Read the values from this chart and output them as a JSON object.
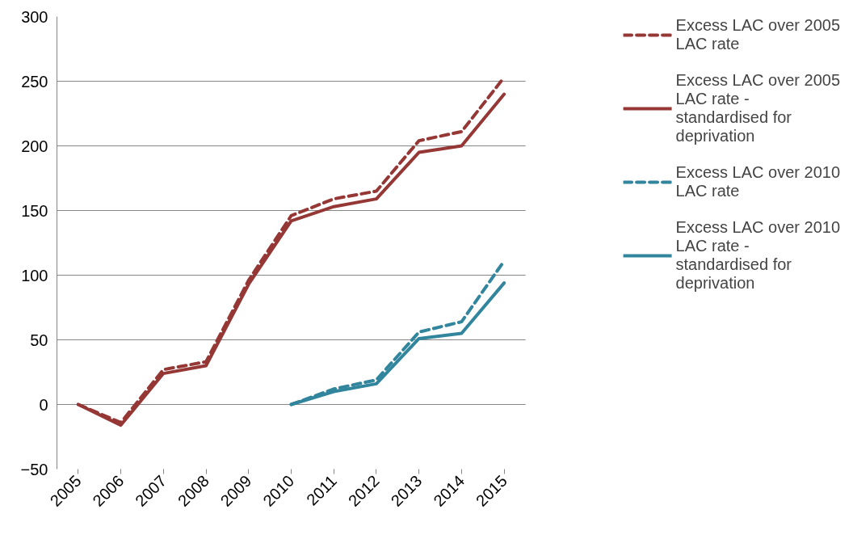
{
  "chart_data": {
    "type": "line",
    "categories": [
      "2005",
      "2006",
      "2007",
      "2008",
      "2009",
      "2010",
      "2011",
      "2012",
      "2013",
      "2014",
      "2015"
    ],
    "series": [
      {
        "name": "Excess LAC over 2005 LAC rate",
        "color": "#953735",
        "line_style": "dashed",
        "values": [
          0,
          -14,
          27,
          33,
          96,
          146,
          159,
          165,
          204,
          211,
          253
        ]
      },
      {
        "name": "Excess LAC over 2005 LAC rate - standardised for deprivation",
        "color": "#953735",
        "line_style": "solid",
        "values": [
          0,
          -16,
          24,
          30,
          93,
          142,
          153,
          159,
          195,
          200,
          240
        ]
      },
      {
        "name": "Excess LAC over 2010 LAC rate",
        "color": "#31859c",
        "line_style": "dashed",
        "values": [
          null,
          null,
          null,
          null,
          null,
          0,
          12,
          19,
          56,
          64,
          111
        ]
      },
      {
        "name": "Excess LAC over 2010 LAC rate - standardised for deprivation",
        "color": "#31859c",
        "line_style": "solid",
        "values": [
          null,
          null,
          null,
          null,
          null,
          0,
          10,
          16,
          51,
          55,
          94
        ]
      }
    ],
    "ylim": [
      -50,
      300
    ],
    "yticks": [
      -50,
      0,
      50,
      100,
      150,
      200,
      250,
      300
    ],
    "grid": "y",
    "legend": "right",
    "marker": "none"
  }
}
